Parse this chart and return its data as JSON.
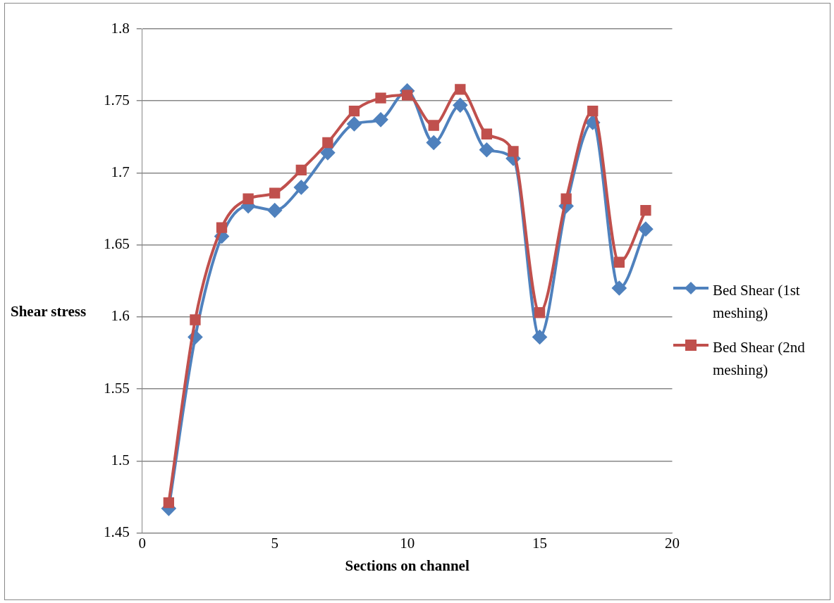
{
  "chart_data": {
    "type": "line",
    "xlabel": "Sections on channel",
    "ylabel": "Shear stress",
    "x": [
      1,
      2,
      3,
      4,
      5,
      6,
      7,
      8,
      9,
      10,
      11,
      12,
      13,
      14,
      15,
      16,
      17,
      18,
      19
    ],
    "series": [
      {
        "name": "Bed Shear (1st meshing)",
        "color": "#4f81bd",
        "marker": "diamond",
        "values": [
          1.467,
          1.586,
          1.656,
          1.677,
          1.674,
          1.69,
          1.714,
          1.734,
          1.737,
          1.757,
          1.721,
          1.747,
          1.716,
          1.71,
          1.586,
          1.677,
          1.735,
          1.62,
          1.661
        ]
      },
      {
        "name": "Bed Shear (2nd meshing)",
        "color": "#c0504d",
        "marker": "square",
        "values": [
          1.471,
          1.598,
          1.662,
          1.682,
          1.686,
          1.702,
          1.721,
          1.743,
          1.752,
          1.754,
          1.733,
          1.758,
          1.727,
          1.715,
          1.603,
          1.682,
          1.743,
          1.638,
          1.674
        ]
      }
    ],
    "xlim": [
      0,
      20
    ],
    "xticks": [
      0,
      5,
      10,
      15,
      20
    ],
    "ylim": [
      1.45,
      1.8
    ],
    "yticks": [
      1.45,
      1.5,
      1.55,
      1.6,
      1.65,
      1.7,
      1.75,
      1.8
    ],
    "grid": "y",
    "legend": "right",
    "line_style": "solid"
  }
}
